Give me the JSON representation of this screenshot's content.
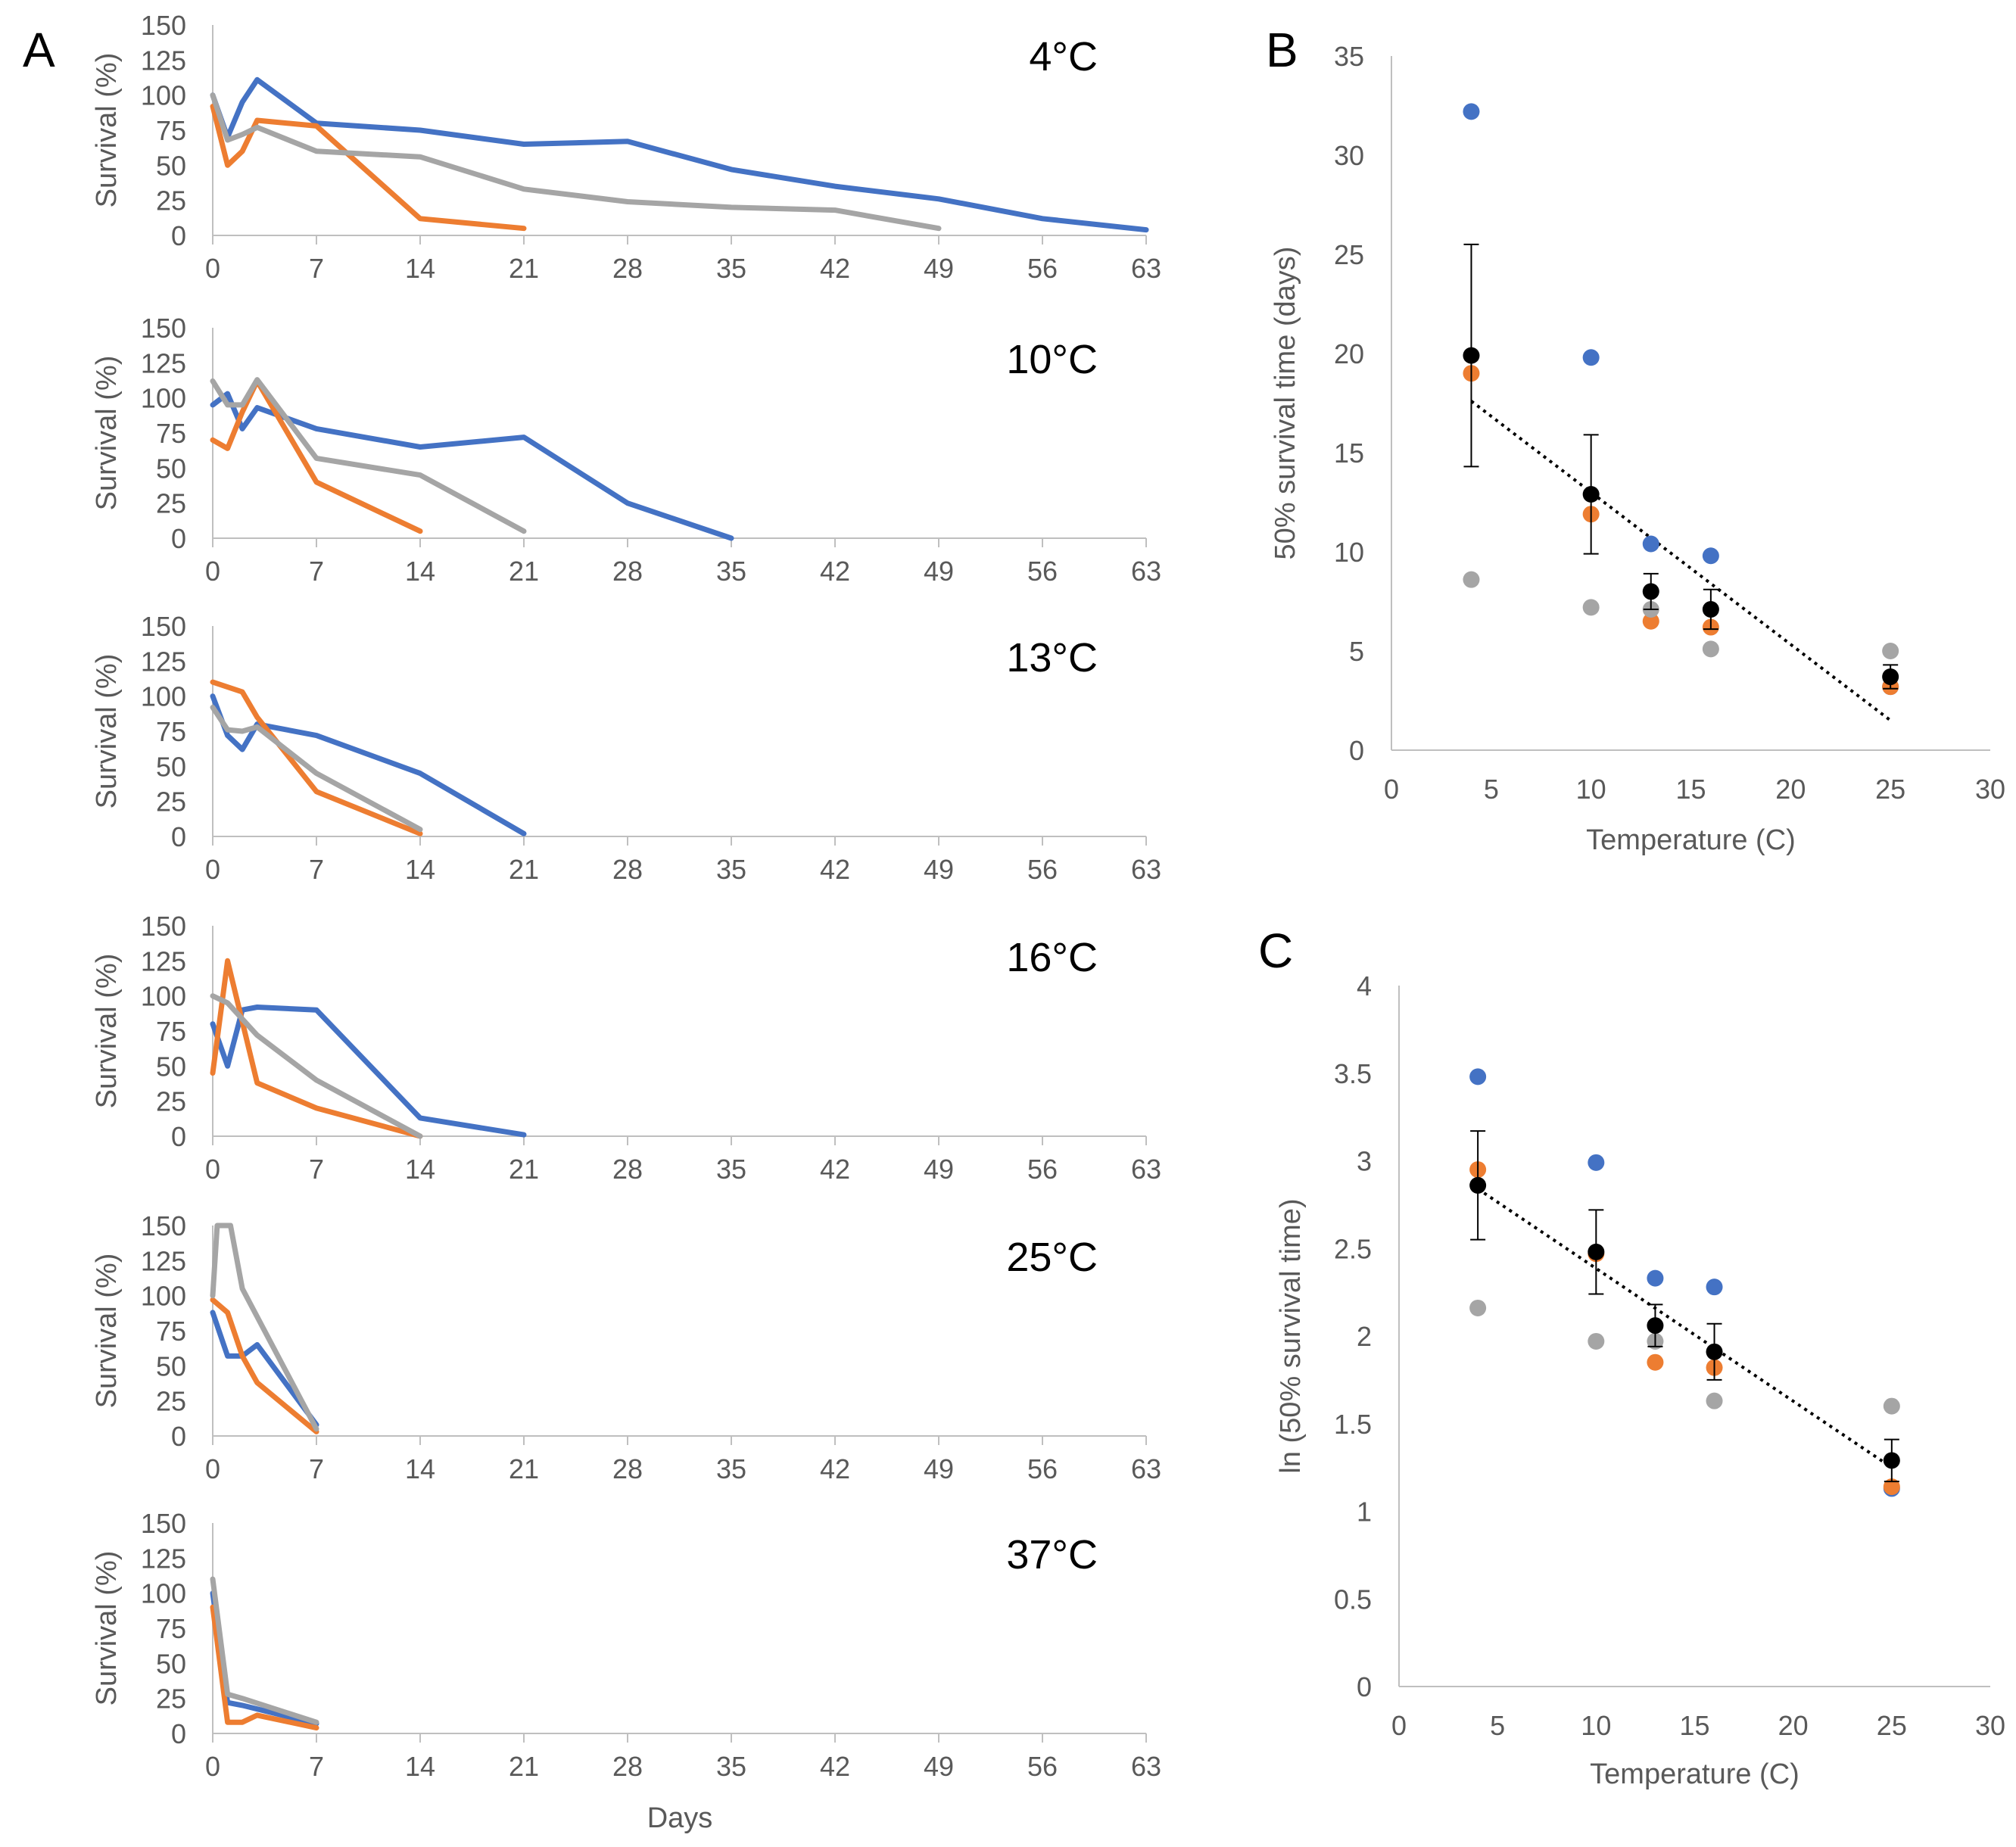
{
  "colors": {
    "blue": "#4472C4",
    "orange": "#ED7D31",
    "gray": "#A5A5A5",
    "mean": "#000000",
    "axis": "#BFBFBF",
    "text": "#595959"
  },
  "panel_letters": [
    "A",
    "B",
    "C"
  ],
  "chart_data": [
    {
      "id": "A-4C",
      "type": "line",
      "panel": "A",
      "label": "4°C",
      "ylabel": "Survival (%)",
      "xlabel": "",
      "ylim": [
        0,
        150
      ],
      "xlim": [
        0,
        63
      ],
      "x_ticks": [
        "0",
        "7",
        "14",
        "21",
        "28",
        "35",
        "42",
        "49",
        "56",
        "63"
      ],
      "y_ticks": [
        "0",
        "25",
        "50",
        "75",
        "100",
        "125",
        "150"
      ],
      "series": [
        {
          "name": "blue",
          "color": "blue",
          "points": [
            [
              0,
              100
            ],
            [
              1,
              70
            ],
            [
              2,
              95
            ],
            [
              3,
              111
            ],
            [
              7,
              80
            ],
            [
              14,
              75
            ],
            [
              21,
              65
            ],
            [
              28,
              67
            ],
            [
              35,
              47
            ],
            [
              42,
              35
            ],
            [
              49,
              26
            ],
            [
              56,
              12
            ],
            [
              63,
              4
            ]
          ]
        },
        {
          "name": "orange",
          "color": "orange",
          "points": [
            [
              0,
              92
            ],
            [
              1,
              50
            ],
            [
              2,
              60
            ],
            [
              3,
              82
            ],
            [
              7,
              78
            ],
            [
              14,
              12
            ],
            [
              21,
              5
            ]
          ]
        },
        {
          "name": "gray",
          "color": "gray",
          "points": [
            [
              0,
              100
            ],
            [
              1,
              68
            ],
            [
              2,
              72
            ],
            [
              3,
              77
            ],
            [
              7,
              60
            ],
            [
              14,
              56
            ],
            [
              21,
              33
            ],
            [
              28,
              24
            ],
            [
              35,
              20
            ],
            [
              42,
              18
            ],
            [
              49,
              5
            ]
          ]
        }
      ]
    },
    {
      "id": "A-10C",
      "type": "line",
      "panel": "A",
      "label": "10°C",
      "ylabel": "Survival (%)",
      "xlabel": "",
      "ylim": [
        0,
        150
      ],
      "xlim": [
        0,
        63
      ],
      "x_ticks": [
        "0",
        "7",
        "14",
        "21",
        "28",
        "35",
        "42",
        "49",
        "56",
        "63"
      ],
      "y_ticks": [
        "0",
        "25",
        "50",
        "75",
        "100",
        "125",
        "150"
      ],
      "series": [
        {
          "name": "blue",
          "color": "blue",
          "points": [
            [
              0,
              95
            ],
            [
              1,
              103
            ],
            [
              2,
              78
            ],
            [
              3,
              93
            ],
            [
              7,
              78
            ],
            [
              14,
              65
            ],
            [
              21,
              72
            ],
            [
              28,
              25
            ],
            [
              35,
              0
            ]
          ]
        },
        {
          "name": "orange",
          "color": "orange",
          "points": [
            [
              0,
              70
            ],
            [
              1,
              64
            ],
            [
              2,
              90
            ],
            [
              3,
              112
            ],
            [
              7,
              40
            ],
            [
              14,
              5
            ]
          ]
        },
        {
          "name": "gray",
          "color": "gray",
          "points": [
            [
              0,
              112
            ],
            [
              1,
              95
            ],
            [
              2,
              95
            ],
            [
              3,
              113
            ],
            [
              7,
              57
            ],
            [
              14,
              45
            ],
            [
              21,
              5
            ]
          ]
        }
      ]
    },
    {
      "id": "A-13C",
      "type": "line",
      "panel": "A",
      "label": "13°C",
      "ylabel": "Survival (%)",
      "xlabel": "",
      "ylim": [
        0,
        150
      ],
      "xlim": [
        0,
        63
      ],
      "x_ticks": [
        "0",
        "7",
        "14",
        "21",
        "28",
        "35",
        "42",
        "49",
        "56",
        "63"
      ],
      "y_ticks": [
        "0",
        "25",
        "50",
        "75",
        "100",
        "125",
        "150"
      ],
      "series": [
        {
          "name": "blue",
          "color": "blue",
          "points": [
            [
              0,
              100
            ],
            [
              1,
              72
            ],
            [
              2,
              62
            ],
            [
              3,
              80
            ],
            [
              7,
              72
            ],
            [
              14,
              45
            ],
            [
              21,
              2
            ]
          ]
        },
        {
          "name": "orange",
          "color": "orange",
          "points": [
            [
              0,
              110
            ],
            [
              2,
              103
            ],
            [
              3,
              85
            ],
            [
              7,
              32
            ],
            [
              14,
              2
            ]
          ]
        },
        {
          "name": "gray",
          "color": "gray",
          "points": [
            [
              0,
              92
            ],
            [
              1,
              76
            ],
            [
              2,
              75
            ],
            [
              3,
              78
            ],
            [
              7,
              45
            ],
            [
              14,
              5
            ]
          ]
        }
      ]
    },
    {
      "id": "A-16C",
      "type": "line",
      "panel": "A",
      "label": "16°C",
      "ylabel": "Survival (%)",
      "xlabel": "",
      "ylim": [
        0,
        150
      ],
      "xlim": [
        0,
        63
      ],
      "x_ticks": [
        "0",
        "7",
        "14",
        "21",
        "28",
        "35",
        "42",
        "49",
        "56",
        "63"
      ],
      "y_ticks": [
        "0",
        "25",
        "50",
        "75",
        "100",
        "125",
        "150"
      ],
      "series": [
        {
          "name": "blue",
          "color": "blue",
          "points": [
            [
              0,
              80
            ],
            [
              1,
              50
            ],
            [
              2,
              90
            ],
            [
              3,
              92
            ],
            [
              7,
              90
            ],
            [
              14,
              13
            ],
            [
              21,
              1
            ]
          ]
        },
        {
          "name": "orange",
          "color": "orange",
          "points": [
            [
              0,
              45
            ],
            [
              1,
              125
            ],
            [
              3,
              38
            ],
            [
              7,
              20
            ],
            [
              14,
              0
            ]
          ]
        },
        {
          "name": "gray",
          "color": "gray",
          "points": [
            [
              0,
              100
            ],
            [
              1,
              95
            ],
            [
              3,
              72
            ],
            [
              7,
              40
            ],
            [
              14,
              0
            ]
          ]
        }
      ]
    },
    {
      "id": "A-25C",
      "type": "line",
      "panel": "A",
      "label": "25°C",
      "ylabel": "Survival (%)",
      "xlabel": "",
      "ylim": [
        0,
        150
      ],
      "xlim": [
        0,
        63
      ],
      "x_ticks": [
        "0",
        "7",
        "14",
        "21",
        "28",
        "35",
        "42",
        "49",
        "56",
        "63"
      ],
      "y_ticks": [
        "0",
        "25",
        "50",
        "75",
        "100",
        "125",
        "150"
      ],
      "series": [
        {
          "name": "blue",
          "color": "blue",
          "points": [
            [
              0,
              88
            ],
            [
              1,
              57
            ],
            [
              2,
              57
            ],
            [
              3,
              65
            ],
            [
              7,
              8
            ]
          ]
        },
        {
          "name": "orange",
          "color": "orange",
          "points": [
            [
              0,
              97
            ],
            [
              1,
              88
            ],
            [
              2,
              57
            ],
            [
              3,
              38
            ],
            [
              7,
              3
            ]
          ]
        },
        {
          "name": "gray",
          "color": "gray",
          "points": [
            [
              0,
              100
            ],
            [
              0.3,
              150
            ],
            [
              1.2,
              150
            ],
            [
              2,
              105
            ],
            [
              7,
              5
            ]
          ]
        }
      ]
    },
    {
      "id": "A-37C",
      "type": "line",
      "panel": "A",
      "label": "37°C",
      "xlabel": "Days",
      "ylabel": "Survival (%)",
      "ylim": [
        0,
        150
      ],
      "xlim": [
        0,
        63
      ],
      "x_ticks": [
        "0",
        "7",
        "14",
        "21",
        "28",
        "35",
        "42",
        "49",
        "56",
        "63"
      ],
      "y_ticks": [
        "0",
        "25",
        "50",
        "75",
        "100",
        "125",
        "150"
      ],
      "series": [
        {
          "name": "blue",
          "color": "blue",
          "points": [
            [
              0,
              100
            ],
            [
              1,
              22
            ],
            [
              2,
              20
            ],
            [
              7,
              7
            ]
          ]
        },
        {
          "name": "orange",
          "color": "orange",
          "points": [
            [
              0,
              90
            ],
            [
              1,
              8
            ],
            [
              2,
              8
            ],
            [
              3,
              13
            ],
            [
              7,
              4
            ]
          ]
        },
        {
          "name": "gray",
          "color": "gray",
          "points": [
            [
              0,
              110
            ],
            [
              1,
              28
            ],
            [
              2,
              25
            ],
            [
              7,
              8
            ]
          ]
        }
      ]
    },
    {
      "id": "B",
      "type": "scatter",
      "panel": "B",
      "xlabel": "Temperature  (C)",
      "ylabel": "50% survival  time (days)",
      "xlim": [
        0,
        30
      ],
      "ylim": [
        0,
        35
      ],
      "x_ticks": [
        "0",
        "5",
        "10",
        "15",
        "20",
        "25",
        "30"
      ],
      "y_ticks": [
        "0",
        "5",
        "10",
        "15",
        "20",
        "25",
        "30",
        "35"
      ],
      "series": [
        {
          "name": "blue",
          "color": "blue",
          "points": [
            [
              4,
              32.2
            ],
            [
              10,
              19.8
            ],
            [
              13,
              10.4
            ],
            [
              16,
              9.8
            ],
            [
              25,
              3.2
            ]
          ]
        },
        {
          "name": "orange",
          "color": "orange",
          "points": [
            [
              4,
              19
            ],
            [
              10,
              11.9
            ],
            [
              13,
              6.5
            ],
            [
              16,
              6.2
            ],
            [
              25,
              3.2
            ]
          ]
        },
        {
          "name": "gray",
          "color": "gray",
          "points": [
            [
              4,
              8.6
            ],
            [
              10,
              7.2
            ],
            [
              13,
              7.1
            ],
            [
              16,
              5.1
            ],
            [
              25,
              5
            ]
          ]
        },
        {
          "name": "mean",
          "color": "mean",
          "points": [
            [
              4,
              19.9
            ],
            [
              10,
              12.9
            ],
            [
              13,
              8
            ],
            [
              16,
              7.1
            ],
            [
              25,
              3.7
            ]
          ],
          "errors": [
            5.6,
            3,
            0.9,
            1,
            0.6
          ]
        }
      ],
      "trendline": [
        [
          4,
          17.6
        ],
        [
          25,
          1.5
        ]
      ]
    },
    {
      "id": "C",
      "type": "scatter",
      "panel": "C",
      "xlabel": "Temperature  (C)",
      "ylabel": "ln (50% survival  time)",
      "xlim": [
        0,
        30
      ],
      "ylim": [
        0,
        4
      ],
      "x_ticks": [
        "0",
        "5",
        "10",
        "15",
        "20",
        "25",
        "30"
      ],
      "y_ticks": [
        "0",
        "0.5",
        "1",
        "1.5",
        "2",
        "2.5",
        "3",
        "3.5",
        "4"
      ],
      "series": [
        {
          "name": "blue",
          "color": "blue",
          "points": [
            [
              4,
              3.48
            ],
            [
              10,
              2.99
            ],
            [
              13,
              2.33
            ],
            [
              16,
              2.28
            ],
            [
              25,
              1.13
            ]
          ]
        },
        {
          "name": "orange",
          "color": "orange",
          "points": [
            [
              4,
              2.95
            ],
            [
              10,
              2.47
            ],
            [
              13,
              1.85
            ],
            [
              16,
              1.82
            ],
            [
              25,
              1.14
            ]
          ]
        },
        {
          "name": "gray",
          "color": "gray",
          "points": [
            [
              4,
              2.16
            ],
            [
              10,
              1.97
            ],
            [
              13,
              1.97
            ],
            [
              16,
              1.63
            ],
            [
              25,
              1.6
            ]
          ]
        },
        {
          "name": "mean",
          "color": "mean",
          "points": [
            [
              4,
              2.86
            ],
            [
              10,
              2.48
            ],
            [
              13,
              2.06
            ],
            [
              16,
              1.91
            ],
            [
              25,
              1.29
            ]
          ],
          "errors": [
            0.31,
            0.24,
            0.12,
            0.16,
            0.12
          ]
        }
      ],
      "trendline": [
        [
          4,
          2.84
        ],
        [
          25,
          1.25
        ]
      ]
    }
  ]
}
